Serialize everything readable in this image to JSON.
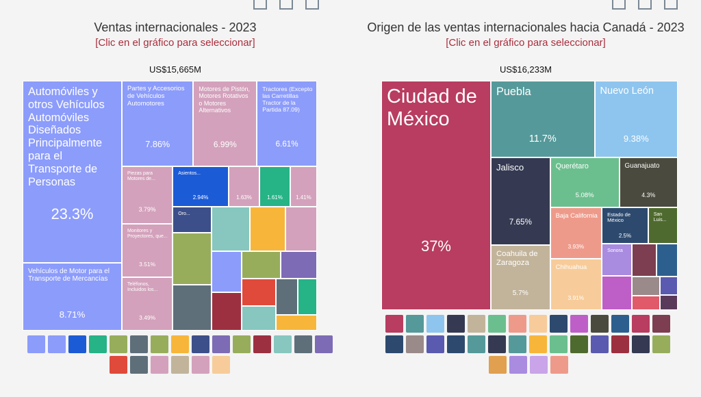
{
  "chart_data": [
    {
      "type": "treemap",
      "title": "Ventas internacionales - 2023",
      "subtitle": "[Clic en el gráfico para seleccionar]",
      "total_label": "US$15,665M",
      "categories": [
        "Automóviles y otros Vehículos Automóviles Diseñados Principalmente para el Transporte de Personas",
        "Vehículos de Motor para el Transporte de Mercancías",
        "Partes y Accesorios de Vehículos Automotores",
        "Motores de Pistón, Motores Rotativos o Motores Alternativos",
        "Tractores (Excepto las Carretillas Tractor de la Partida 87.09)",
        "Piezas para Motores de...",
        "Monitores y Proyectores, que...",
        "Teléfonos, Incluidos los...",
        "Asientos...",
        null,
        null,
        null,
        "Oro...",
        null,
        null,
        null,
        null,
        null,
        null,
        null,
        null,
        null,
        null,
        null,
        null,
        null,
        null
      ],
      "values": [
        23.3,
        8.71,
        7.86,
        6.99,
        6.61,
        3.79,
        3.51,
        3.49,
        2.94,
        1.63,
        1.61,
        1.41,
        1.3,
        2.6,
        2.3,
        2.2,
        2.0,
        1.8,
        1.6,
        1.5,
        1.4,
        1.3,
        1.2,
        1.1,
        1.0,
        0.9,
        0.85
      ],
      "value_labels": [
        "23.3%",
        "8.71%",
        "7.86%",
        "6.99%",
        "6.61%",
        "3.79%",
        "3.51%",
        "3.49%",
        "2.94%",
        "1.63%",
        "1.61%",
        "1.41%",
        null,
        null,
        null,
        null,
        null,
        null,
        null,
        null,
        null,
        null,
        null,
        null,
        null,
        null,
        null
      ],
      "colors": [
        "#8c9cfb",
        "#8c9cfb",
        "#8c9cfb",
        "#d3a1bb",
        "#8c9cfb",
        "#d3a1bb",
        "#d3a1bb",
        "#d3a1bb",
        "#1c5bd6",
        "#d3a1bb",
        "#26b386",
        "#d3a1bb",
        "#3d4f8a",
        "#97ad5c",
        "#5e6f7a",
        "#87c7c0",
        "#f7b63a",
        "#d3a1bb",
        "#8c9cfb",
        "#9d3040",
        "#97ad5c",
        "#7d6bb5",
        "#e04a3a",
        "#87c7c0",
        "#5e6f7a",
        "#26b386",
        "#f7b63a"
      ]
    },
    {
      "type": "treemap",
      "title": "Origen de las ventas internacionales hacia Canadá - 2023",
      "subtitle": "[Clic en el gráfico para seleccionar]",
      "total_label": "US$16,233M",
      "categories": [
        "Ciudad de México",
        "Puebla",
        "Nuevo León",
        "Jalisco",
        "Coahuila de Zaragoza",
        "Querétaro",
        "Guanajuato",
        "Baja California",
        "Chihuahua",
        "Estado de México",
        "San Luis...",
        "Sonora",
        null,
        null,
        null,
        null,
        null,
        null,
        null
      ],
      "values": [
        37,
        11.7,
        9.38,
        7.65,
        5.7,
        5.08,
        4.3,
        3.93,
        3.91,
        2.5,
        1.6,
        1.4,
        1.5,
        1.2,
        1.0,
        0.8,
        0.6,
        0.5,
        0.4
      ],
      "value_labels": [
        "37%",
        "11.7%",
        "9.38%",
        "7.65%",
        "5.7%",
        "5.08%",
        "4.3%",
        "3.93%",
        "3.91%",
        "2.5%",
        null,
        null,
        null,
        null,
        null,
        null,
        null,
        null,
        null
      ],
      "colors": [
        "#b83d60",
        "#55999a",
        "#8ec5ee",
        "#353a52",
        "#c2b49b",
        "#6bbf8e",
        "#4a4a3e",
        "#ee9a8a",
        "#f7cc9a",
        "#2d4a6e",
        "#4f6a2e",
        "#a98be0",
        "#be5fc8",
        "#7c3e50",
        "#2d5f8e",
        "#9a8a8a",
        "#e05a6a",
        "#5a5ab0",
        "#5a3a5a"
      ]
    }
  ]
}
